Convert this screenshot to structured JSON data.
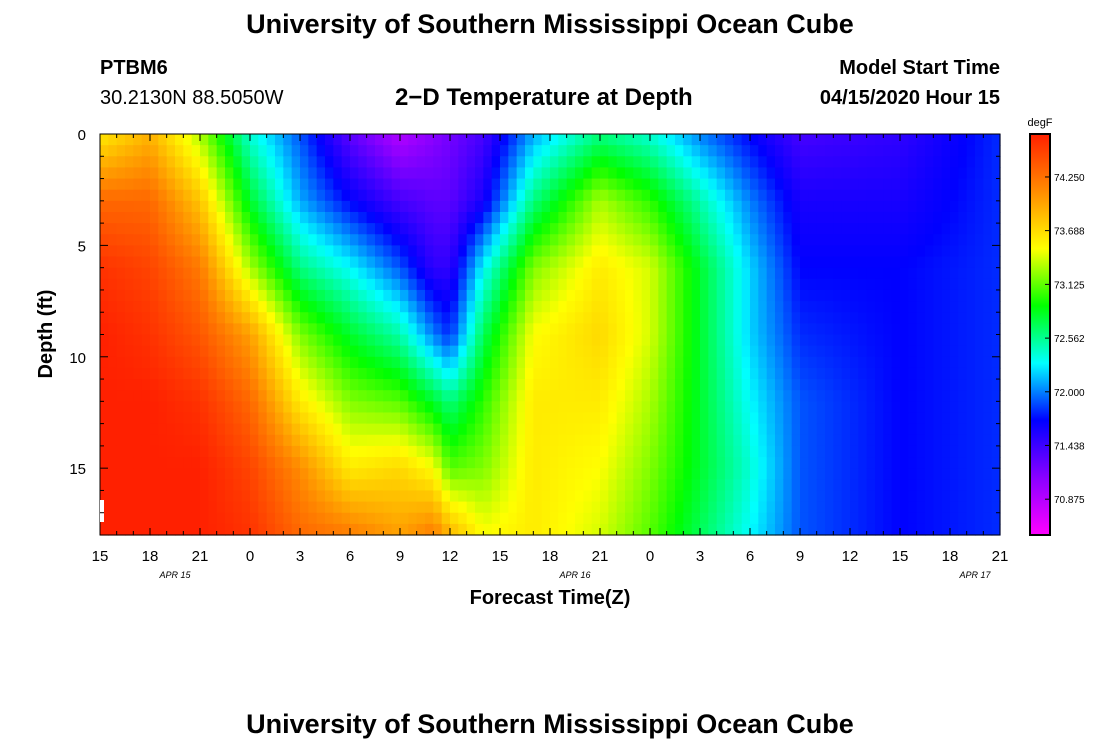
{
  "page": {
    "title_top": "University of Southern Mississippi Ocean Cube",
    "title_bottom": "University of Southern Mississippi Ocean Cube",
    "station_id": "PTBM6",
    "coordinates": "30.2130N 88.5050W",
    "plot_title": "2−D Temperature at Depth",
    "model_start_label": "Model Start Time",
    "model_start_value": "04/15/2020 Hour 15"
  },
  "chart_data": {
    "type": "heatmap",
    "title": "2−D Temperature at Depth",
    "xlabel": "Forecast Time(Z)",
    "ylabel": "Depth (ft)",
    "x_hours": [
      0,
      54
    ],
    "x_tick_labels": [
      "15",
      "18",
      "21",
      "0",
      "3",
      "6",
      "9",
      "12",
      "15",
      "18",
      "21",
      "0",
      "3",
      "6",
      "9",
      "12",
      "15",
      "18",
      "21"
    ],
    "date_labels": [
      {
        "hour": 4.5,
        "label": "APR 15"
      },
      {
        "hour": 28.5,
        "label": "APR 16"
      },
      {
        "hour": 52.5,
        "label": "APR 17"
      }
    ],
    "ylim": [
      0,
      18
    ],
    "y_ticks": [
      0,
      5,
      10,
      15
    ],
    "colorbar": {
      "unit": "degF",
      "range": [
        70.5,
        74.7
      ],
      "ticks": [
        "74.250",
        "73.688",
        "73.125",
        "72.562",
        "72.000",
        "71.438",
        "70.875"
      ]
    },
    "temperature_profiles": [
      {
        "hour": 0,
        "temps": [
          73.6,
          74.3,
          74.6,
          74.7,
          74.7,
          74.7,
          74.7
        ]
      },
      {
        "hour": 3,
        "temps": [
          73.9,
          74.3,
          74.5,
          74.6,
          74.7,
          74.7,
          74.7
        ]
      },
      {
        "hour": 6,
        "temps": [
          73.3,
          73.8,
          74.2,
          74.4,
          74.6,
          74.7,
          74.7
        ]
      },
      {
        "hour": 9,
        "temps": [
          72.4,
          72.8,
          73.3,
          74.0,
          74.3,
          74.5,
          74.6
        ]
      },
      {
        "hour": 12,
        "temps": [
          71.9,
          72.1,
          72.6,
          73.2,
          73.6,
          74.1,
          74.3
        ]
      },
      {
        "hour": 15,
        "temps": [
          71.3,
          71.7,
          72.3,
          72.8,
          73.2,
          73.6,
          74.2
        ]
      },
      {
        "hour": 18,
        "temps": [
          70.9,
          71.4,
          71.9,
          72.5,
          73.1,
          73.7,
          74.0
        ]
      },
      {
        "hour": 20,
        "temps": [
          71.1,
          71.3,
          71.5,
          72.0,
          72.8,
          73.5,
          74.2
        ]
      },
      {
        "hour": 21,
        "temps": [
          71.2,
          71.3,
          71.5,
          71.8,
          72.6,
          73.1,
          73.9
        ]
      },
      {
        "hour": 23,
        "temps": [
          71.4,
          71.6,
          72.3,
          72.7,
          73.0,
          73.2,
          73.5
        ]
      },
      {
        "hour": 26,
        "temps": [
          72.1,
          72.6,
          73.2,
          73.5,
          73.6,
          73.6,
          73.6
        ]
      },
      {
        "hour": 30,
        "temps": [
          72.6,
          73.3,
          73.6,
          73.7,
          73.6,
          73.5,
          73.4
        ]
      },
      {
        "hour": 33,
        "temps": [
          72.4,
          73.0,
          73.4,
          73.4,
          73.3,
          73.2,
          73.1
        ]
      },
      {
        "hour": 36,
        "temps": [
          72.0,
          72.5,
          72.8,
          72.8,
          72.8,
          72.8,
          72.7
        ]
      },
      {
        "hour": 39,
        "temps": [
          71.7,
          72.0,
          72.2,
          72.2,
          72.3,
          72.4,
          72.3
        ]
      },
      {
        "hour": 42,
        "temps": [
          71.4,
          71.6,
          71.7,
          71.8,
          71.9,
          71.9,
          71.9
        ]
      },
      {
        "hour": 48,
        "temps": [
          71.5,
          71.6,
          71.7,
          71.7,
          71.7,
          71.7,
          71.7
        ]
      },
      {
        "hour": 54,
        "temps": [
          71.8,
          71.8,
          71.8,
          71.8,
          71.8,
          71.8,
          71.8
        ]
      }
    ],
    "profile_depths": [
      0,
      3,
      6,
      9,
      12,
      15,
      18
    ],
    "colors": [
      "#ff00ff",
      "#8a00ff",
      "#0000ff",
      "#00ffff",
      "#00ff00",
      "#ffff00",
      "#ff8c00",
      "#ff2000"
    ]
  }
}
